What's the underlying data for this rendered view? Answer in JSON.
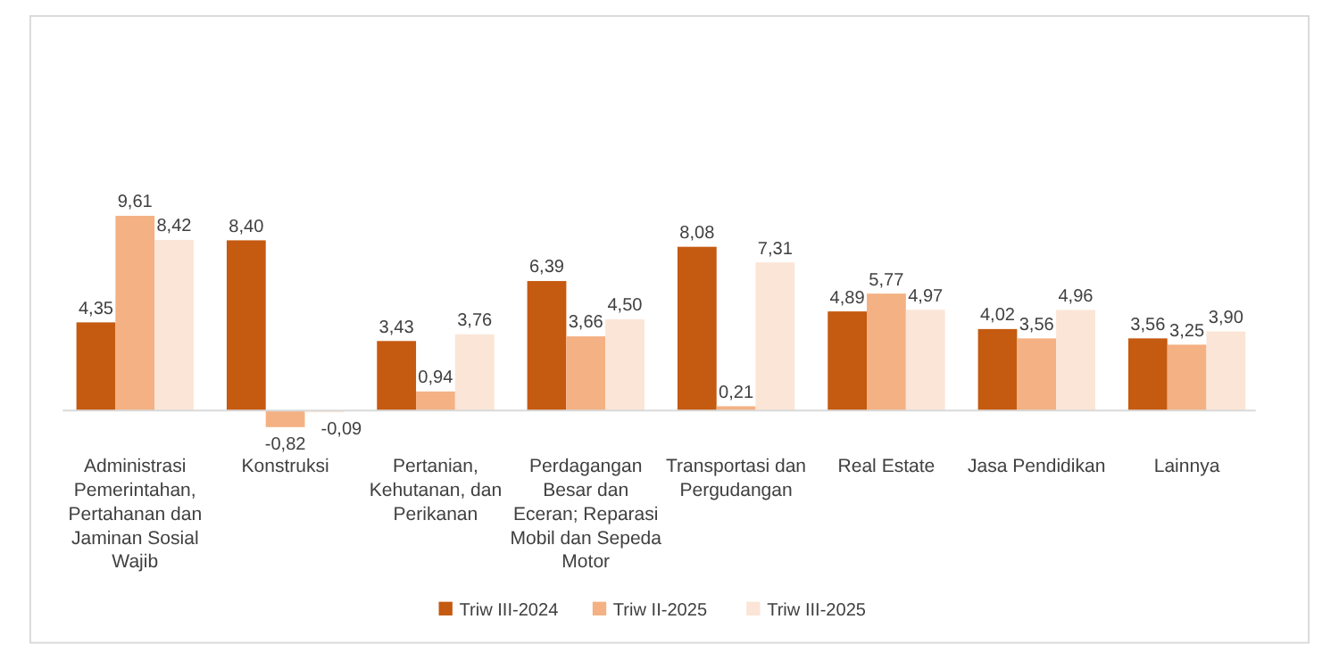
{
  "chart_data": {
    "type": "bar",
    "categories": [
      "Administrasi Pemerintahan, Pertahanan dan Jaminan Sosial Wajib",
      "Konstruksi",
      "Pertanian, Kehutanan, dan Perikanan",
      "Perdagangan Besar dan Eceran; Reparasi Mobil dan Sepeda Motor",
      "Transportasi dan Pergudangan",
      "Real Estate",
      "Jasa Pendidikan",
      "Lainnya"
    ],
    "series": [
      {
        "name": "Triw III-2024",
        "color": "#c55a11",
        "values": [
          4.35,
          8.4,
          3.43,
          6.39,
          8.08,
          4.89,
          4.02,
          3.56
        ],
        "value_labels": [
          "4,35",
          "8,40",
          "3,43",
          "6,39",
          "8,08",
          "4,89",
          "4,02",
          "3,56"
        ]
      },
      {
        "name": "Triw II-2025",
        "color": "#f4b183",
        "values": [
          9.61,
          -0.82,
          0.94,
          3.66,
          0.21,
          5.77,
          3.56,
          3.25
        ],
        "value_labels": [
          "9,61",
          "-0,82",
          "0,94",
          "3,66",
          "0,21",
          "5,77",
          "3,56",
          "3,25"
        ]
      },
      {
        "name": "Triw III-2025",
        "color": "#fbe5d6",
        "values": [
          8.42,
          -0.09,
          3.76,
          4.5,
          7.31,
          4.97,
          4.96,
          3.9
        ],
        "value_labels": [
          "8,42",
          "-0,09",
          "3,76",
          "4,50",
          "7,31",
          "4,97",
          "4,96",
          "3,90"
        ]
      }
    ],
    "legend": "bottom"
  }
}
